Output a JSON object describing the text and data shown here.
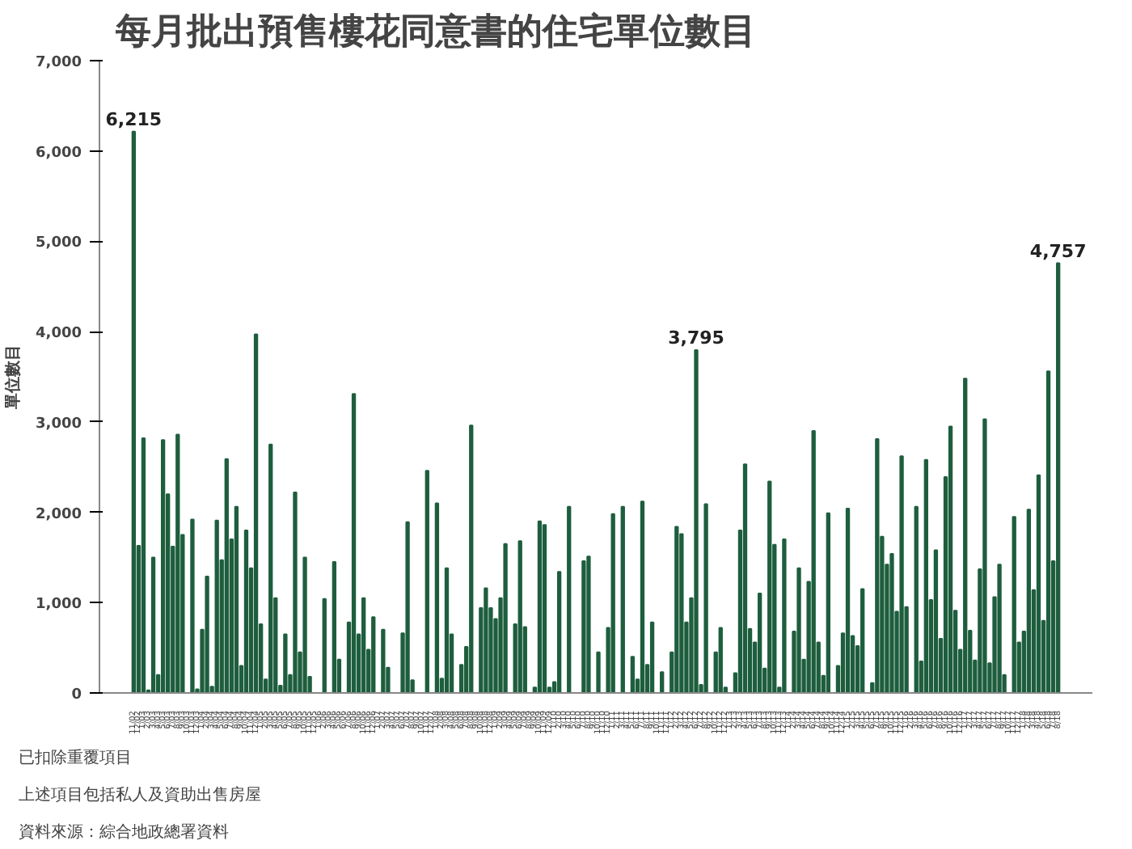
{
  "chart_data": {
    "type": "bar",
    "title": "每月批出預售樓花同意書的住宅單位數目",
    "ylabel": "單位數目",
    "annotations": [
      "已扣除重覆項目",
      "上述項目包括私人及資助出售房屋",
      "資料來源：綜合地政總署資料"
    ],
    "categories": [
      "11/02",
      "12/02",
      "1/03",
      "2/03",
      "3/03",
      "4/03",
      "5/03",
      "6/03",
      "7/03",
      "8/03",
      "9/03",
      "10/03",
      "11/03",
      "12/03",
      "1/04",
      "2/04",
      "3/04",
      "4/04",
      "5/04",
      "6/04",
      "7/04",
      "8/04",
      "9/04",
      "10/04",
      "11/04",
      "12/04",
      "1/05",
      "2/05",
      "3/05",
      "4/05",
      "5/05",
      "6/05",
      "7/05",
      "8/05",
      "9/05",
      "10/05",
      "11/05",
      "12/05",
      "1/06",
      "2/06",
      "3/06",
      "4/06",
      "5/06",
      "6/06",
      "7/06",
      "8/06",
      "9/06",
      "10/06",
      "11/06",
      "12/06",
      "1/07",
      "2/07",
      "3/07",
      "4/07",
      "5/07",
      "6/07",
      "7/07",
      "8/07",
      "9/07",
      "10/07",
      "11/07",
      "12/07",
      "1/08",
      "2/08",
      "3/08",
      "4/08",
      "5/08",
      "6/08",
      "7/08",
      "8/08",
      "9/08",
      "10/08",
      "11/08",
      "12/08",
      "1/09",
      "2/09",
      "3/09",
      "4/09",
      "5/09",
      "6/09",
      "7/09",
      "8/09",
      "9/09",
      "10/09",
      "11/09",
      "12/09",
      "1/10",
      "2/10",
      "3/10",
      "4/10",
      "5/10",
      "6/10",
      "7/10",
      "8/10",
      "9/10",
      "10/10",
      "11/10",
      "12/10",
      "1/11",
      "2/11",
      "3/11",
      "4/11",
      "5/11",
      "6/11",
      "7/11",
      "8/11",
      "9/11",
      "10/11",
      "11/11",
      "12/11",
      "1/12",
      "2/12",
      "3/12",
      "4/12",
      "5/12",
      "6/12",
      "7/12",
      "8/12",
      "9/12",
      "10/12",
      "11/12",
      "12/12",
      "1/13",
      "2/13",
      "3/13",
      "4/13",
      "5/13",
      "6/13",
      "7/13",
      "8/13",
      "9/13",
      "10/13",
      "11/13",
      "12/13",
      "1/14",
      "2/14",
      "3/14",
      "4/14",
      "5/14",
      "6/14",
      "7/14",
      "8/14",
      "9/14",
      "10/14",
      "11/14",
      "12/14",
      "1/15",
      "2/15",
      "3/15",
      "4/15",
      "5/15",
      "6/15",
      "7/15",
      "8/15",
      "9/15",
      "10/15",
      "11/15",
      "12/15",
      "1/16",
      "2/16",
      "3/16",
      "4/16",
      "5/16",
      "6/16",
      "7/16",
      "8/16",
      "9/16",
      "10/16",
      "11/16",
      "12/16",
      "1/17",
      "2/17",
      "3/17",
      "4/17",
      "5/17",
      "6/17",
      "7/17",
      "8/17",
      "9/17",
      "10/17",
      "11/17",
      "12/17",
      "1/18",
      "2/18",
      "3/18",
      "4/18",
      "5/18",
      "6/18",
      "7/18",
      "8/18"
    ],
    "values": [
      6215,
      1630,
      2820,
      30,
      1500,
      200,
      2800,
      2200,
      1620,
      2860,
      1750,
      0,
      1920,
      40,
      700,
      1290,
      70,
      1910,
      1470,
      2590,
      1700,
      2060,
      300,
      1800,
      1380,
      3970,
      760,
      150,
      2750,
      1050,
      80,
      650,
      200,
      2220,
      450,
      1500,
      180,
      0,
      0,
      1040,
      0,
      1450,
      370,
      0,
      780,
      3310,
      650,
      1050,
      480,
      840,
      0,
      700,
      280,
      0,
      0,
      660,
      1890,
      140,
      0,
      0,
      2460,
      0,
      2100,
      160,
      1380,
      650,
      0,
      310,
      510,
      2960,
      0,
      940,
      1160,
      940,
      820,
      1050,
      1650,
      0,
      760,
      1680,
      730,
      0,
      60,
      1900,
      1860,
      60,
      120,
      1340,
      0,
      2060,
      0,
      0,
      1460,
      1510,
      0,
      450,
      0,
      720,
      1980,
      0,
      2060,
      0,
      400,
      150,
      2120,
      310,
      780,
      0,
      230,
      0,
      450,
      1840,
      1760,
      780,
      1050,
      3795,
      90,
      2090,
      0,
      450,
      720,
      60,
      0,
      220,
      1800,
      2530,
      710,
      560,
      1100,
      270,
      2340,
      1640,
      60,
      1700,
      0,
      680,
      1380,
      370,
      1230,
      2900,
      560,
      190,
      1990,
      0,
      300,
      660,
      2040,
      630,
      520,
      1150,
      0,
      110,
      2810,
      1730,
      1420,
      1540,
      900,
      2620,
      950,
      0,
      2060,
      350,
      2580,
      1030,
      1580,
      600,
      2390,
      2950,
      910,
      480,
      3480,
      690,
      360,
      1370,
      3030,
      330,
      1060,
      1420,
      200,
      0,
      1950,
      560,
      680,
      2030,
      1140,
      2410,
      800,
      3560,
      1460,
      4757
    ],
    "value_labels": [
      "6,215",
      null,
      null,
      null,
      null,
      null,
      null,
      null,
      null,
      null,
      null,
      null,
      null,
      null,
      null,
      null,
      null,
      null,
      null,
      null,
      null,
      null,
      null,
      null,
      null,
      null,
      null,
      null,
      null,
      null,
      null,
      null,
      null,
      null,
      null,
      null,
      null,
      null,
      null,
      null,
      null,
      null,
      null,
      null,
      null,
      null,
      null,
      null,
      null,
      null,
      null,
      null,
      null,
      null,
      null,
      null,
      null,
      null,
      null,
      null,
      null,
      null,
      null,
      null,
      null,
      null,
      null,
      null,
      null,
      null,
      null,
      null,
      null,
      null,
      null,
      null,
      null,
      null,
      null,
      null,
      null,
      null,
      null,
      null,
      null,
      null,
      null,
      null,
      null,
      null,
      null,
      null,
      null,
      null,
      null,
      null,
      null,
      null,
      null,
      null,
      null,
      null,
      null,
      null,
      null,
      null,
      null,
      null,
      null,
      null,
      null,
      null,
      null,
      null,
      null,
      "3,795",
      null,
      null,
      null,
      null,
      null,
      null,
      null,
      null,
      null,
      null,
      null,
      null,
      null,
      null,
      null,
      null,
      null,
      null,
      null,
      null,
      null,
      null,
      null,
      null,
      null,
      null,
      null,
      null,
      null,
      null,
      null,
      null,
      null,
      null,
      null,
      null,
      null,
      null,
      null,
      null,
      null,
      null,
      null,
      null,
      null,
      null,
      null,
      null,
      null,
      null,
      null,
      null,
      null,
      null,
      null,
      null,
      null,
      null,
      null,
      null,
      null,
      null,
      null,
      null,
      null,
      null,
      null,
      null,
      null,
      null,
      null,
      null,
      null,
      "4,757"
    ],
    "color": "#1e5e3e",
    "ylim": [
      0,
      7000
    ],
    "yticks": [
      {
        "value": 0,
        "label": "0"
      },
      {
        "value": 1000,
        "label": "1,000"
      },
      {
        "value": 2000,
        "label": "2,000"
      },
      {
        "value": 3000,
        "label": "3,000"
      },
      {
        "value": 4000,
        "label": "4,000"
      },
      {
        "value": 5000,
        "label": "5,000"
      },
      {
        "value": 6000,
        "label": "6,000"
      },
      {
        "value": 7000,
        "label": "7,000"
      }
    ],
    "grid": false
  }
}
